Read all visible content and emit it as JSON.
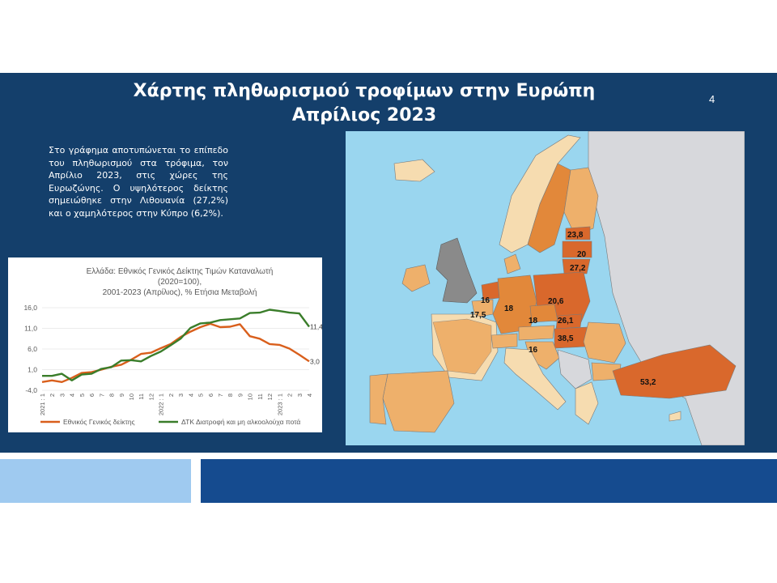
{
  "slide": {
    "title_line1": "Χάρτης πληθωρισμού τροφίμων στην Ευρώπη",
    "title_line2": "Απρίλιος 2023",
    "page_number": "4",
    "description": "Στο γράφημα αποτυπώνεται το επίπεδο του πληθωρισμού στα τρόφιμα, τον Απρίλιο 2023, στις χώρες της Ευρωζώνης. Ο υψηλότερος δείκτης σημειώθηκε στην Λιθουανία (27,2%) και ο χαμηλότερος στην Κύπρο (6,2%).",
    "colors": {
      "panel": "#143f6b",
      "bar_light": "#9fcaf0",
      "bar_dark": "#154b8f"
    }
  },
  "chart_data": [
    {
      "type": "line",
      "title_lines": [
        "Ελλάδα: Εθνικός Γενικός Δείκτης Τιμών Καταναλωτή",
        "(2020=100),",
        "2001-2023 (Απρίλιος), % Ετήσια Μεταβολή"
      ],
      "y_ticks": [
        "16,0",
        "11,0",
        "6,0",
        "1,0",
        "-4,0"
      ],
      "ylim": [
        -4,
        16
      ],
      "x_tick_labels": [
        "2021 : 1",
        "2",
        "3",
        "4",
        "5",
        "6",
        "7",
        "8",
        "9",
        "10",
        "11",
        "12",
        "2022 : 1",
        "2",
        "3",
        "4",
        "5",
        "6",
        "7",
        "8",
        "9",
        "10",
        "11",
        "12",
        "2023 : 1",
        "2",
        "3",
        "4"
      ],
      "series": [
        {
          "name": "Εθνικός Γενικός δείκτης",
          "color": "#d95f1c",
          "values": [
            -2.0,
            -1.6,
            -2.0,
            -1.0,
            0.2,
            0.4,
            1.0,
            1.7,
            2.2,
            3.4,
            4.8,
            5.1,
            6.2,
            7.2,
            8.9,
            10.2,
            11.3,
            12.1,
            11.3,
            11.4,
            12.0,
            9.1,
            8.5,
            7.2,
            7.0,
            6.1,
            4.6,
            3.0
          ],
          "end_label": "3,0"
        },
        {
          "name": "ΔΤΚ Διατροφή και μη αλκοολούχα ποτά",
          "color": "#3a7d2a",
          "values": [
            -0.5,
            -0.5,
            0.0,
            -1.6,
            -0.2,
            0.0,
            1.2,
            1.6,
            3.2,
            3.3,
            3.0,
            4.3,
            5.4,
            6.9,
            8.5,
            11.1,
            12.2,
            12.4,
            13.0,
            13.2,
            13.4,
            14.7,
            14.8,
            15.5,
            15.2,
            14.8,
            14.6,
            11.4
          ],
          "end_label": "11,4"
        }
      ]
    },
    {
      "type": "heatmap",
      "description_type": "choropleth map of food inflation by country, April 2023 (%)",
      "values": [
        {
          "label": "23,8",
          "value": 23.8
        },
        {
          "label": "20",
          "value": 20
        },
        {
          "label": "27,2",
          "value": 27.2
        },
        {
          "label": "16",
          "value": 16
        },
        {
          "label": "17,5",
          "value": 17.5
        },
        {
          "label": "18",
          "value": 18
        },
        {
          "label": "20,6",
          "value": 20.6
        },
        {
          "label": "18",
          "value": 18
        },
        {
          "label": "26,1",
          "value": 26.1
        },
        {
          "label": "38,5",
          "value": 38.5
        },
        {
          "label": "16",
          "value": 16
        },
        {
          "label": "53,2",
          "value": 53.2
        }
      ],
      "colors": {
        "sea": "#9ad6ef",
        "land_outside": "#d7d8dc",
        "uk": "#8a8a8a",
        "low": "#f6dcb0",
        "mid": "#eeb06b",
        "high": "#e2883a",
        "top": "#d9682c"
      }
    }
  ]
}
